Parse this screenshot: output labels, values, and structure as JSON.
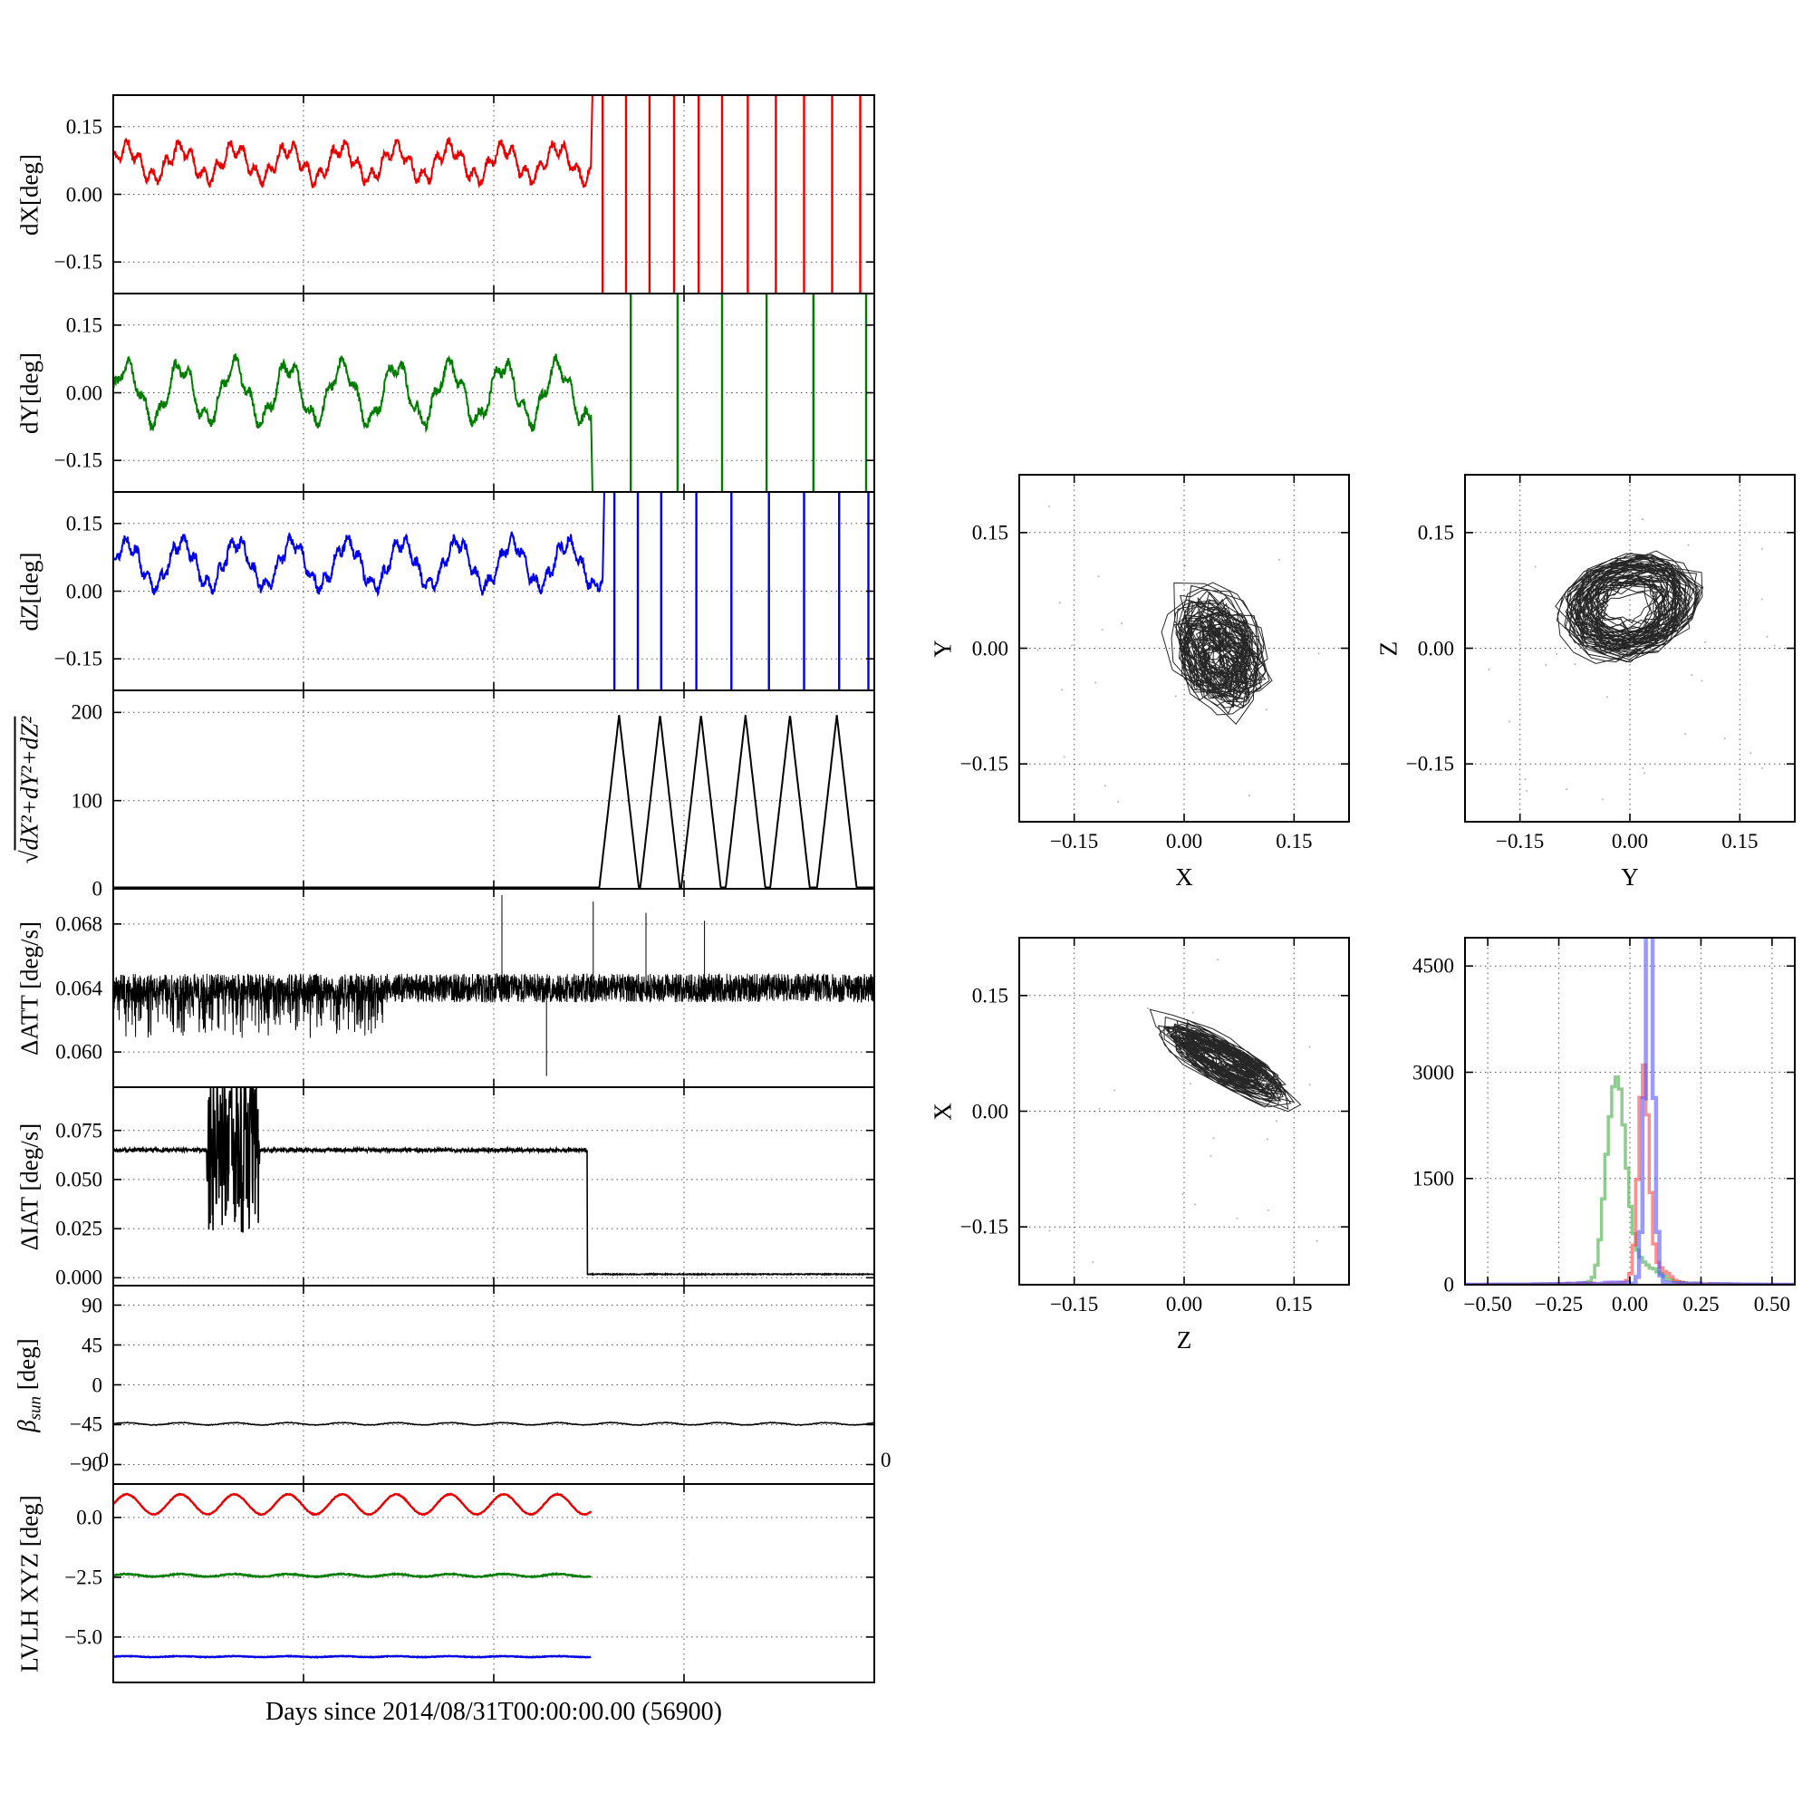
{
  "figure": {
    "background": "#ffffff",
    "xlabel": "Days since 2014/08/31T00:00:00.00 (56900)",
    "corner_zeros": [
      "0",
      "0"
    ]
  },
  "palette": {
    "red": "#e60000",
    "green": "#007d00",
    "blue": "#0000e6",
    "black": "#000000",
    "hist_red": "#ff4444",
    "hist_green": "#44aa44",
    "hist_blue": "#5555ff"
  },
  "chart_data": [
    {
      "id": "dX",
      "type": "line",
      "ylabel_parts": [
        {
          "t": "dX[deg]",
          "s": ""
        }
      ],
      "xlim": [
        0,
        6.5
      ],
      "ylim": [
        -0.22,
        0.22
      ],
      "xgrid": [
        1.625,
        3.25,
        4.875
      ],
      "yticks": [
        {
          "v": -0.15,
          "label": "−0.15"
        },
        {
          "v": 0,
          "label": "0.00"
        },
        {
          "v": 0.15,
          "label": "0.15"
        }
      ],
      "series": [
        {
          "color": "red",
          "width": 2,
          "gen": {
            "kind": "osc",
            "seed": 11,
            "base": 0.07,
            "amp": 0.033,
            "period": 0.46,
            "amp2": 0.016,
            "period2": 0.11,
            "noise": 0.008,
            "t1": 4.08,
            "dt": 0.004,
            "end": "up"
          }
        },
        {
          "color": "red",
          "width": 2.4,
          "gen": {
            "kind": "vspikes",
            "times": [
              4.18,
              4.38,
              4.58,
              4.79,
              5.0,
              5.2,
              5.42,
              5.66,
              5.9,
              6.14,
              6.38
            ]
          }
        }
      ]
    },
    {
      "id": "dY",
      "type": "line",
      "ylabel_parts": [
        {
          "t": "dY[deg]",
          "s": ""
        }
      ],
      "xlim": [
        0,
        6.5
      ],
      "ylim": [
        -0.22,
        0.22
      ],
      "xgrid": [
        1.625,
        3.25,
        4.875
      ],
      "yticks": [
        {
          "v": -0.15,
          "label": "−0.15"
        },
        {
          "v": 0,
          "label": "0.00"
        },
        {
          "v": 0.15,
          "label": "0.15"
        }
      ],
      "series": [
        {
          "color": "green",
          "width": 2,
          "gen": {
            "kind": "osc",
            "seed": 12,
            "base": 0.0,
            "amp": 0.06,
            "period": 0.46,
            "amp2": 0.018,
            "period2": 0.13,
            "noise": 0.01,
            "t1": 4.08,
            "dt": 0.004,
            "end": "down"
          }
        },
        {
          "color": "green",
          "width": 2.4,
          "gen": {
            "kind": "vspikes",
            "times": [
              4.42,
              4.82,
              5.2,
              5.58,
              5.98,
              6.43
            ]
          }
        }
      ]
    },
    {
      "id": "dZ",
      "type": "line",
      "ylabel_parts": [
        {
          "t": "dZ[deg]",
          "s": ""
        }
      ],
      "xlim": [
        0,
        6.5
      ],
      "ylim": [
        -0.22,
        0.22
      ],
      "xgrid": [
        1.625,
        3.25,
        4.875
      ],
      "yticks": [
        {
          "v": -0.15,
          "label": "−0.15"
        },
        {
          "v": 0,
          "label": "0.00"
        },
        {
          "v": 0.15,
          "label": "0.15"
        }
      ],
      "series": [
        {
          "color": "blue",
          "width": 2,
          "gen": {
            "kind": "osc",
            "seed": 13,
            "base": 0.06,
            "amp": 0.048,
            "period": 0.47,
            "amp2": 0.014,
            "period2": 0.1,
            "noise": 0.01,
            "t1": 4.18,
            "dt": 0.004,
            "end": "up"
          }
        },
        {
          "color": "blue",
          "width": 2.4,
          "gen": {
            "kind": "vspikes",
            "times": [
              4.28,
              4.48,
              4.68,
              4.98,
              5.28,
              5.6,
              5.9,
              6.2,
              6.45
            ]
          }
        }
      ]
    },
    {
      "id": "mag",
      "type": "line",
      "ylabel_parts": [
        {
          "t": "√",
          "s": ""
        },
        {
          "t": "dX²+dY²+dZ²",
          "s": "over"
        }
      ],
      "xlim": [
        0,
        6.5
      ],
      "ylim": [
        0,
        225
      ],
      "xgrid": [
        1.625,
        3.25,
        4.875
      ],
      "yticks": [
        {
          "v": 0,
          "label": "0"
        },
        {
          "v": 100,
          "label": "100"
        },
        {
          "v": 200,
          "label": "200"
        }
      ],
      "series": [
        {
          "color": "black",
          "width": 2,
          "gen": {
            "kind": "triangles",
            "baseline": 1.5,
            "peaks": [
              4.32,
              4.67,
              5.02,
              5.4,
              5.78,
              6.18
            ],
            "halfwidth": 0.17,
            "peak": 197,
            "t1": 6.5,
            "dt": 0.003
          }
        }
      ]
    },
    {
      "id": "att",
      "type": "line",
      "ylabel_parts": [
        {
          "t": "ΔATT [deg/s]",
          "s": ""
        }
      ],
      "xlim": [
        0,
        6.5
      ],
      "ylim": [
        0.0578,
        0.0702
      ],
      "xgrid": [
        1.625,
        3.25,
        4.875
      ],
      "yticks": [
        {
          "v": 0.06,
          "label": "0.060"
        },
        {
          "v": 0.064,
          "label": "0.064"
        },
        {
          "v": 0.068,
          "label": "0.068"
        }
      ],
      "series": [
        {
          "color": "black",
          "width": 1,
          "gen": {
            "kind": "attnoise",
            "seed": 5,
            "base": 0.064,
            "noise": 0.0009,
            "t1": 6.5,
            "dt": 0.002,
            "down_region": [
              0,
              2.3
            ],
            "down_prob": 0.28,
            "down_depth": 0.0026,
            "spikes": [
              [
                3.32,
                0.0698
              ],
              [
                4.1,
                0.0694
              ],
              [
                4.55,
                0.0687
              ],
              [
                5.05,
                0.0682
              ],
              [
                3.7,
                0.0585
              ]
            ]
          }
        }
      ]
    },
    {
      "id": "iat",
      "type": "line",
      "ylabel_parts": [
        {
          "t": "ΔIAT [deg/s]",
          "s": ""
        }
      ],
      "xlim": [
        0,
        6.5
      ],
      "ylim": [
        -0.004,
        0.097
      ],
      "xgrid": [
        1.625,
        3.25,
        4.875
      ],
      "yticks": [
        {
          "v": 0,
          "label": "0.000"
        },
        {
          "v": 0.025,
          "label": "0.025"
        },
        {
          "v": 0.05,
          "label": "0.050"
        },
        {
          "v": 0.075,
          "label": "0.075"
        }
      ],
      "series": [
        {
          "color": "black",
          "width": 1.6,
          "gen": {
            "kind": "iat",
            "seed": 7,
            "base": 0.065,
            "noise": 0.0009,
            "burst": [
              0.8,
              1.25
            ],
            "burst_amp": 0.05,
            "drop_t": 4.05,
            "after": 0.0018,
            "t1": 6.5,
            "dt": 0.003
          }
        }
      ]
    },
    {
      "id": "beta",
      "type": "line",
      "ylabel_parts": [
        {
          "t": "β",
          "s": "it"
        },
        {
          "t": "sun",
          "s": "sub"
        },
        {
          "t": " [deg]",
          "s": ""
        }
      ],
      "xlim": [
        0,
        6.5
      ],
      "ylim": [
        -112,
        112
      ],
      "xgrid": [
        1.625,
        3.25,
        4.875
      ],
      "yticks": [
        {
          "v": -90,
          "label": "−90"
        },
        {
          "v": -45,
          "label": "−45"
        },
        {
          "v": 0,
          "label": "0"
        },
        {
          "v": 45,
          "label": "45"
        },
        {
          "v": 90,
          "label": "90"
        }
      ],
      "series": [
        {
          "color": "black",
          "width": 1.6,
          "gen": {
            "kind": "osc",
            "seed": 8,
            "base": -44,
            "amp": 1.3,
            "period": 0.46,
            "noise": 0.35,
            "t1": 6.5,
            "dt": 0.008
          }
        }
      ]
    },
    {
      "id": "lvlh",
      "type": "line",
      "ylabel_parts": [
        {
          "t": "LVLH XYZ [deg]",
          "s": ""
        }
      ],
      "xlim": [
        0,
        6.5
      ],
      "ylim": [
        -6.9,
        1.4
      ],
      "xgrid": [
        1.625,
        3.25,
        4.875
      ],
      "yticks": [
        {
          "v": 0,
          "label": "0.0"
        },
        {
          "v": -2.5,
          "label": "−2.5"
        },
        {
          "v": -5,
          "label": "−5.0"
        }
      ],
      "series": [
        {
          "color": "red",
          "width": 2.4,
          "gen": {
            "kind": "osc",
            "seed": 14,
            "base": 0.55,
            "amp": 0.42,
            "period": 0.46,
            "noise": 0.018,
            "t1": 4.08,
            "dt": 0.005
          }
        },
        {
          "color": "green",
          "width": 2.4,
          "gen": {
            "kind": "osc",
            "seed": 15,
            "base": -2.42,
            "amp": 0.055,
            "period": 0.46,
            "noise": 0.02,
            "t1": 4.08,
            "dt": 0.005
          }
        },
        {
          "color": "blue",
          "width": 2.4,
          "gen": {
            "kind": "osc",
            "seed": 16,
            "base": -5.82,
            "amp": 0.02,
            "period": 0.46,
            "noise": 0.012,
            "t1": 4.08,
            "dt": 0.005
          }
        }
      ]
    },
    {
      "id": "sxy",
      "type": "scatter",
      "xlabel": "X",
      "ylabel_parts": [
        {
          "t": "Y",
          "s": ""
        }
      ],
      "xlim": [
        -0.225,
        0.225
      ],
      "ylim": [
        -0.225,
        0.225
      ],
      "xticks": [
        {
          "v": -0.15,
          "label": "−0.15"
        },
        {
          "v": 0,
          "label": "0.00"
        },
        {
          "v": 0.15,
          "label": "0.15"
        }
      ],
      "yticks": [
        {
          "v": -0.15,
          "label": "−0.15"
        },
        {
          "v": 0,
          "label": "0.00"
        },
        {
          "v": 0.15,
          "label": "0.15"
        }
      ],
      "speckle": 20,
      "gen": {
        "kind": "loop",
        "seed": 21,
        "cx": 0.05,
        "cy": -0.005,
        "r0": 0.035,
        "rn": 0.045,
        "sx": 0.85,
        "sy": 1.25,
        "tilt": 0.5,
        "n": 900
      }
    },
    {
      "id": "syz",
      "type": "scatter",
      "xlabel": "Y",
      "ylabel_parts": [
        {
          "t": "Z",
          "s": ""
        }
      ],
      "xlim": [
        -0.225,
        0.225
      ],
      "ylim": [
        -0.225,
        0.225
      ],
      "xticks": [
        {
          "v": -0.15,
          "label": "−0.15"
        },
        {
          "v": 0,
          "label": "0.00"
        },
        {
          "v": 0.15,
          "label": "0.15"
        }
      ],
      "yticks": [
        {
          "v": -0.15,
          "label": "−0.15"
        },
        {
          "v": 0,
          "label": "0.00"
        },
        {
          "v": 0.15,
          "label": "0.15"
        }
      ],
      "speckle": 30,
      "gen": {
        "kind": "loop",
        "seed": 22,
        "cx": 0.0,
        "cy": 0.055,
        "r0": 0.055,
        "rn": 0.03,
        "sx": 1.2,
        "sy": 0.85,
        "tilt": 0.2,
        "n": 900
      }
    },
    {
      "id": "szx",
      "type": "scatter",
      "xlabel": "Z",
      "ylabel_parts": [
        {
          "t": "X",
          "s": ""
        }
      ],
      "xlim": [
        -0.225,
        0.225
      ],
      "ylim": [
        -0.225,
        0.225
      ],
      "xticks": [
        {
          "v": -0.15,
          "label": "−0.15"
        },
        {
          "v": 0,
          "label": "0.00"
        },
        {
          "v": 0.15,
          "label": "0.15"
        }
      ],
      "yticks": [
        {
          "v": -0.15,
          "label": "−0.15"
        },
        {
          "v": 0,
          "label": "0.00"
        },
        {
          "v": 0.15,
          "label": "0.15"
        }
      ],
      "speckle": 20,
      "gen": {
        "kind": "loop",
        "seed": 23,
        "cx": 0.055,
        "cy": 0.065,
        "r0": 0.04,
        "rn": 0.035,
        "sx": 1.5,
        "sy": 0.4,
        "tilt": -0.5,
        "n": 900
      }
    },
    {
      "id": "hist",
      "type": "histogram",
      "xlim": [
        -0.58,
        0.58
      ],
      "ylim": [
        0,
        4900
      ],
      "binw": 0.012,
      "xticks": [
        {
          "v": -0.5,
          "label": "−0.50"
        },
        {
          "v": -0.25,
          "label": "−0.25"
        },
        {
          "v": 0,
          "label": "0.00"
        },
        {
          "v": 0.25,
          "label": "0.25"
        },
        {
          "v": 0.5,
          "label": "0.50"
        }
      ],
      "yticks": [
        {
          "v": 0,
          "label": "0"
        },
        {
          "v": 1500,
          "label": "1500"
        },
        {
          "v": 3000,
          "label": "3000"
        },
        {
          "v": 4500,
          "label": "4500"
        }
      ],
      "series": [
        {
          "color": "hist_green",
          "width": 3.5,
          "seed": 31,
          "comps": [
            [
              -0.045,
              0.03,
              2750
            ],
            [
              -0.085,
              0.018,
              500
            ],
            [
              0.03,
              0.06,
              300
            ]
          ]
        },
        {
          "color": "hist_red",
          "width": 3.5,
          "seed": 32,
          "comps": [
            [
              0.048,
              0.018,
              2950
            ],
            [
              0.09,
              0.04,
              250
            ]
          ]
        },
        {
          "color": "hist_blue",
          "width": 4.5,
          "seed": 33,
          "comps": [
            [
              0.068,
              0.015,
              5400
            ]
          ]
        }
      ]
    }
  ]
}
